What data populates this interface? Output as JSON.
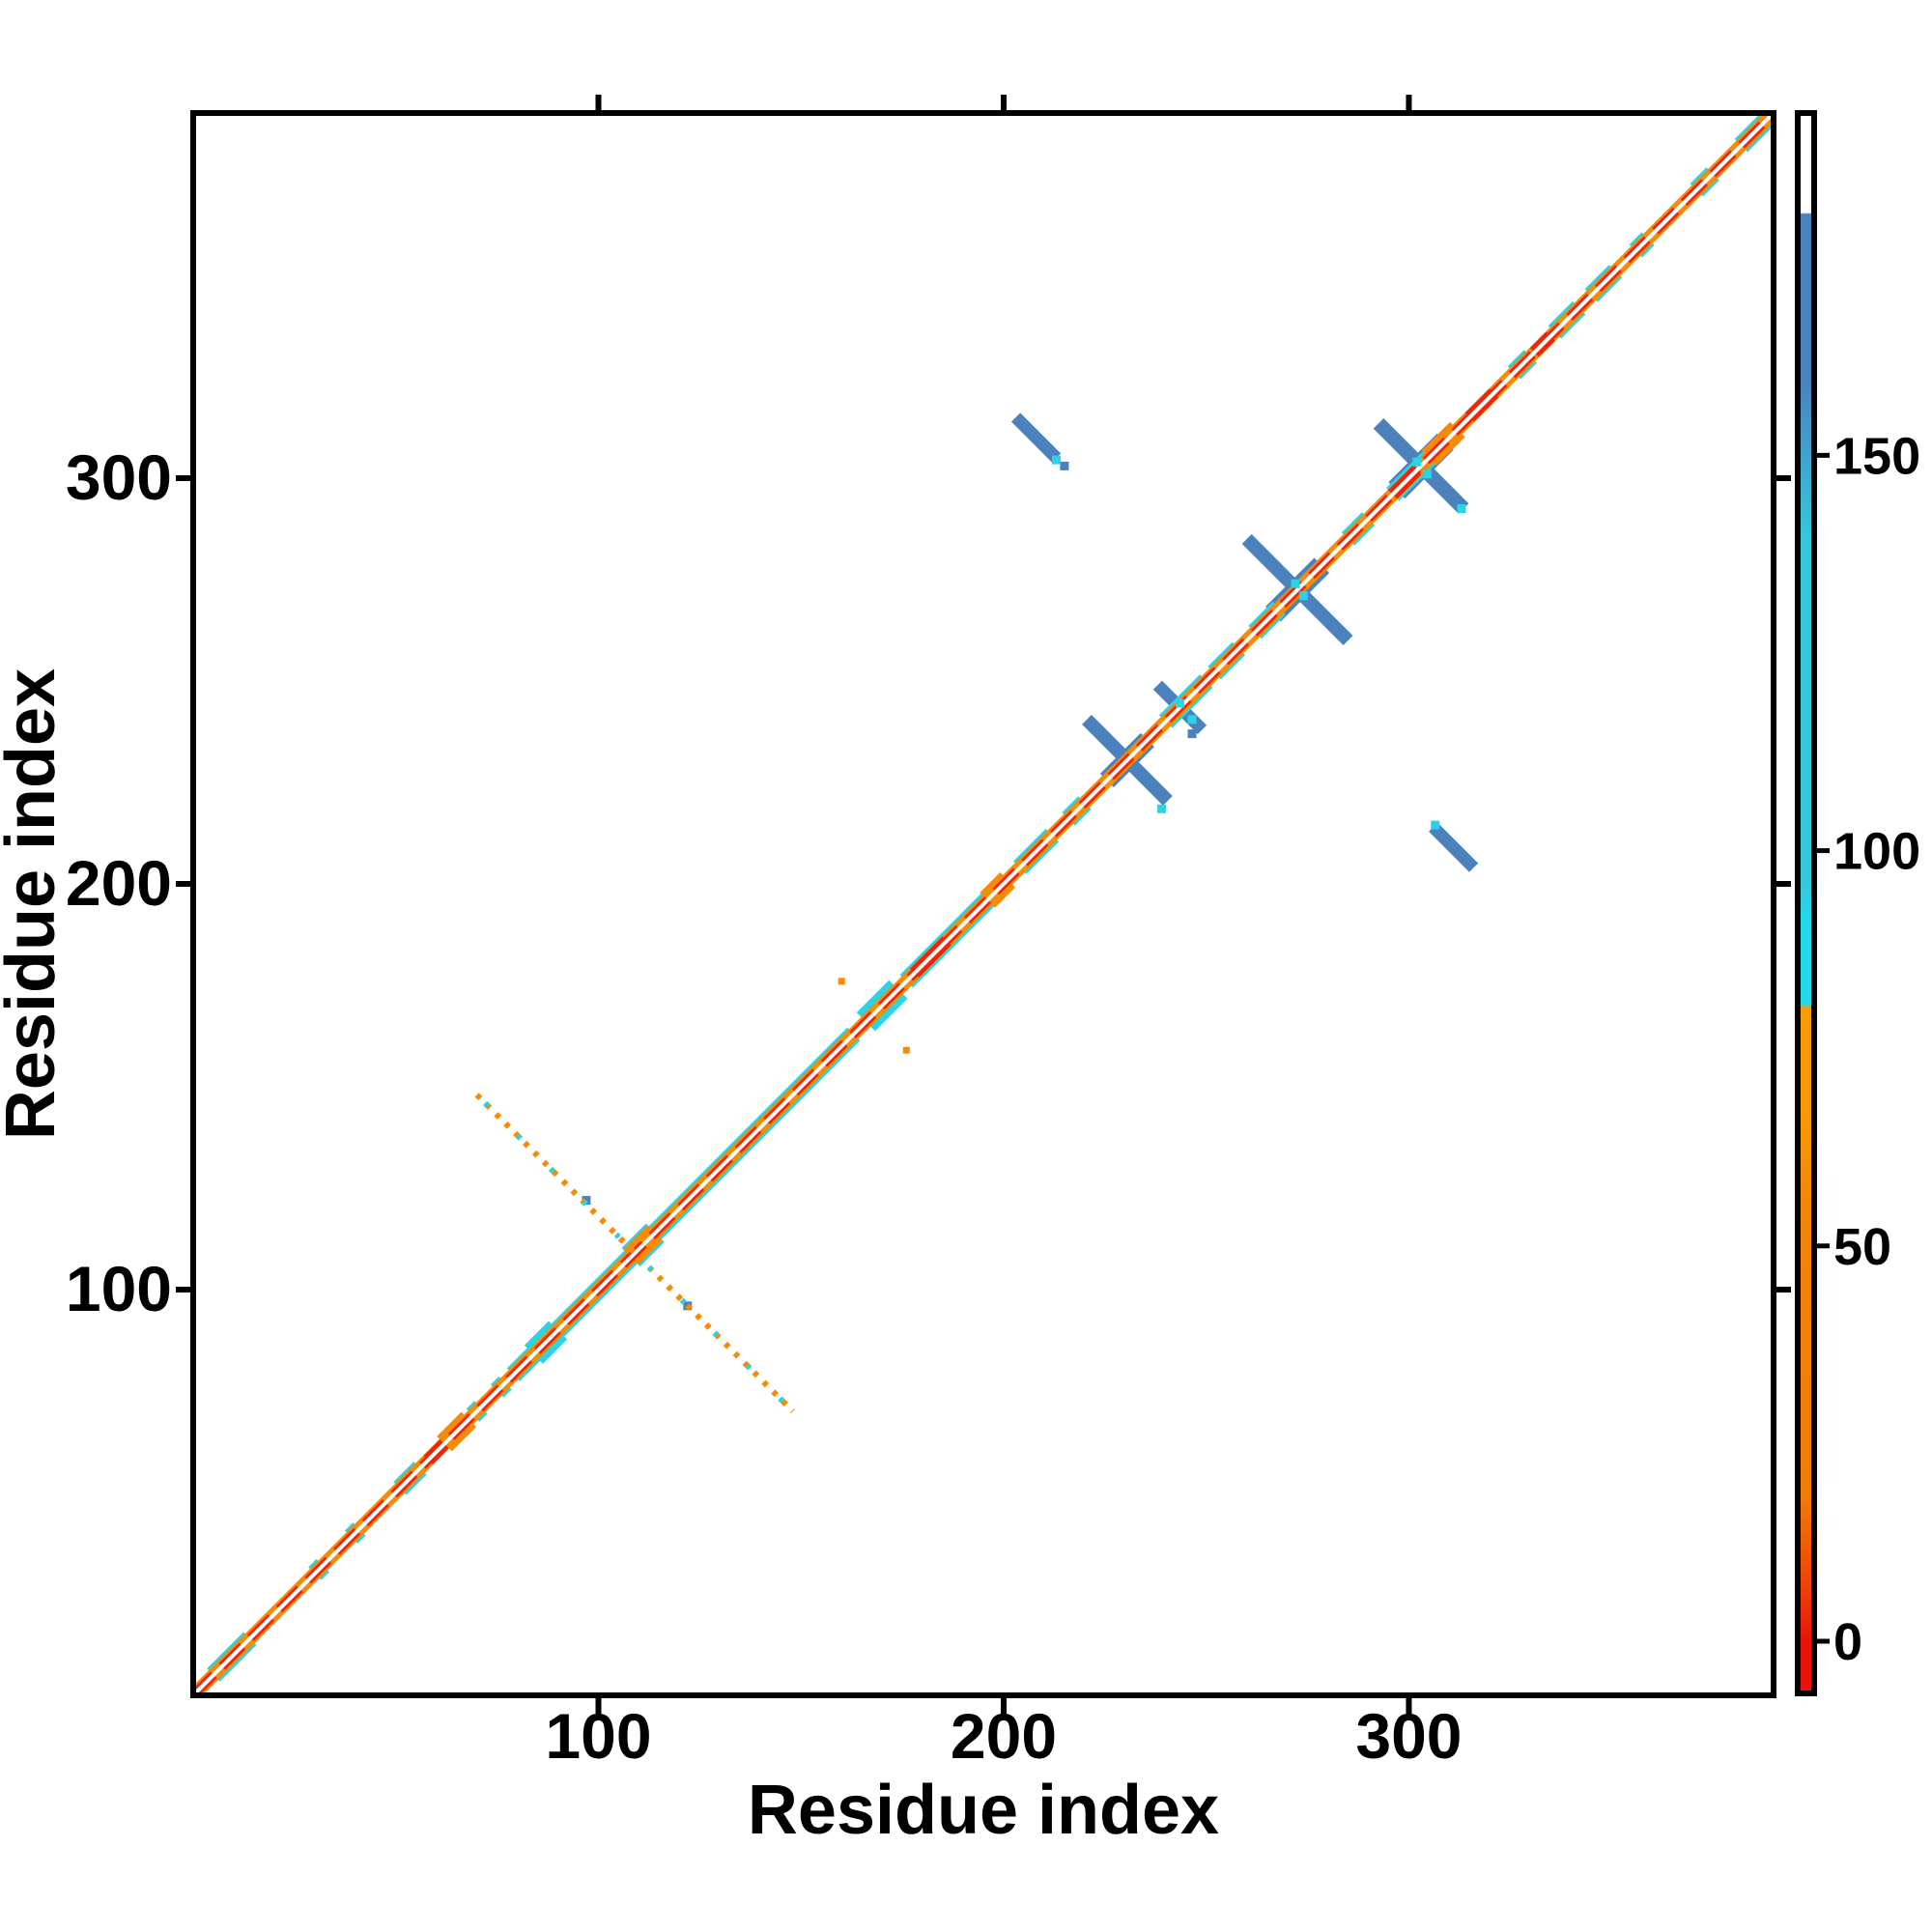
{
  "chart_data": {
    "type": "heatmap",
    "title": "",
    "xlabel": "Residue index",
    "ylabel": "Residue index",
    "x_range": [
      0,
      390
    ],
    "y_range": [
      0,
      390
    ],
    "x_ticks": [
      100,
      200,
      300
    ],
    "y_ticks": [
      100,
      200,
      300
    ],
    "grid": false,
    "legend_position": "right-colorbar",
    "palette": {
      "white": "#ffffff",
      "red": "#ee2608",
      "deep_red": "#ea1309",
      "orange": "#f68b07",
      "deep_orange": "#f07c05",
      "amber": "#f89a08",
      "cyan": "#2bd3e4",
      "bright_cyan": "#22d9ea",
      "muted_cyan": "#35c8da",
      "steel_blue": "#4b82be",
      "axis_black": "#000000"
    },
    "colorbar": {
      "ticks": [
        0,
        50,
        100,
        150
      ],
      "value_range": [
        -6.6,
        193.3
      ],
      "stops": [
        {
          "p": 0.0,
          "c": "#ffffff"
        },
        {
          "p": 6.3,
          "c": "#ffffff"
        },
        {
          "p": 6.4,
          "c": "#4b82be"
        },
        {
          "p": 17.0,
          "c": "#4b82be"
        },
        {
          "p": 27.0,
          "c": "#35c8da"
        },
        {
          "p": 49.0,
          "c": "#35c8da"
        },
        {
          "p": 51.0,
          "c": "#22d9ea"
        },
        {
          "p": 56.4,
          "c": "#22d9ea"
        },
        {
          "p": 56.6,
          "c": "#f89a08"
        },
        {
          "p": 63.0,
          "c": "#f89a08"
        },
        {
          "p": 70.0,
          "c": "#f28406"
        },
        {
          "p": 87.5,
          "c": "#f07c05"
        },
        {
          "p": 94.0,
          "c": "#ed3a07"
        },
        {
          "p": 96.5,
          "c": "#ea1309"
        },
        {
          "p": 100.0,
          "c": "#ea1309"
        }
      ]
    },
    "features": {
      "diagonal_band": {
        "range": [
          0,
          390.5
        ],
        "cyan_segments": [
          [
            5,
            14
          ],
          [
            30,
            32
          ],
          [
            39,
            41
          ],
          [
            51,
            56
          ],
          [
            69,
            71
          ],
          [
            75,
            77
          ],
          [
            79,
            163
          ],
          [
            176,
            200
          ],
          [
            204,
            212
          ],
          [
            216,
            220
          ],
          [
            240,
            250
          ],
          [
            252,
            258
          ],
          [
            262,
            268
          ],
          [
            285,
            290
          ],
          [
            296,
            312
          ],
          [
            326,
            330
          ],
          [
            336,
            342
          ],
          [
            345,
            351
          ],
          [
            356,
            359
          ],
          [
            371,
            375
          ],
          [
            382,
            389
          ]
        ],
        "cyan_bulges": [
          [
            84,
            90
          ],
          [
            108,
            114
          ],
          [
            166,
            174
          ]
        ],
        "orange_bulges": [
          [
            62,
            68
          ],
          [
            108,
            114
          ],
          [
            196,
            201
          ],
          [
            305,
            312
          ]
        ],
        "red_bulges": [
          [
            58,
            62
          ],
          [
            178,
            186
          ],
          [
            296,
            302
          ],
          [
            315,
            321
          ],
          [
            331,
            335
          ]
        ]
      },
      "crosses": [
        {
          "c": 303,
          "anti_half": 10.5,
          "anti_w": 15,
          "diag_half": 6,
          "diag_w": 24
        },
        {
          "c": 272.5,
          "anti_half": 12.5,
          "anti_w": 14,
          "diag_half": 6,
          "diag_w": 22
        },
        {
          "c": 230.5,
          "anti_half": 10,
          "anti_w": 14,
          "diag_half": 5,
          "diag_w": 20
        },
        {
          "c": 243.5,
          "anti_half": 5.5,
          "anti_w": 13,
          "diag_half": 0,
          "diag_w": 0
        }
      ],
      "streaks": [
        {
          "x1": 203,
          "y1": 315,
          "x2": 213,
          "y2": 305,
          "w": 13
        },
        {
          "x1": 306,
          "y1": 214,
          "x2": 316,
          "y2": 204,
          "w": 13
        },
        {
          "x1": 233.5,
          "y1": 227.5,
          "x2": 240,
          "y2": 221,
          "w": 13
        }
      ],
      "dotted_antidiagonal": {
        "x1": 70,
        "y1": 148,
        "x2": 148,
        "y2": 70
      },
      "blue_dots": [
        [
          97,
          122
        ],
        [
          122,
          96
        ],
        [
          215,
          303
        ],
        [
          246.5,
          237
        ]
      ],
      "cyan_dots": [
        [
          243.5,
          244.5
        ],
        [
          246.5,
          240.5
        ],
        [
          239,
          218.5
        ],
        [
          213,
          304.5
        ],
        [
          306.5,
          214.5
        ],
        [
          302,
          304
        ],
        [
          304.5,
          301
        ],
        [
          313,
          292.5
        ],
        [
          272,
          274
        ],
        [
          274,
          271
        ]
      ],
      "orange_specks": [
        [
          160,
          176
        ],
        [
          176,
          159
        ]
      ]
    }
  }
}
